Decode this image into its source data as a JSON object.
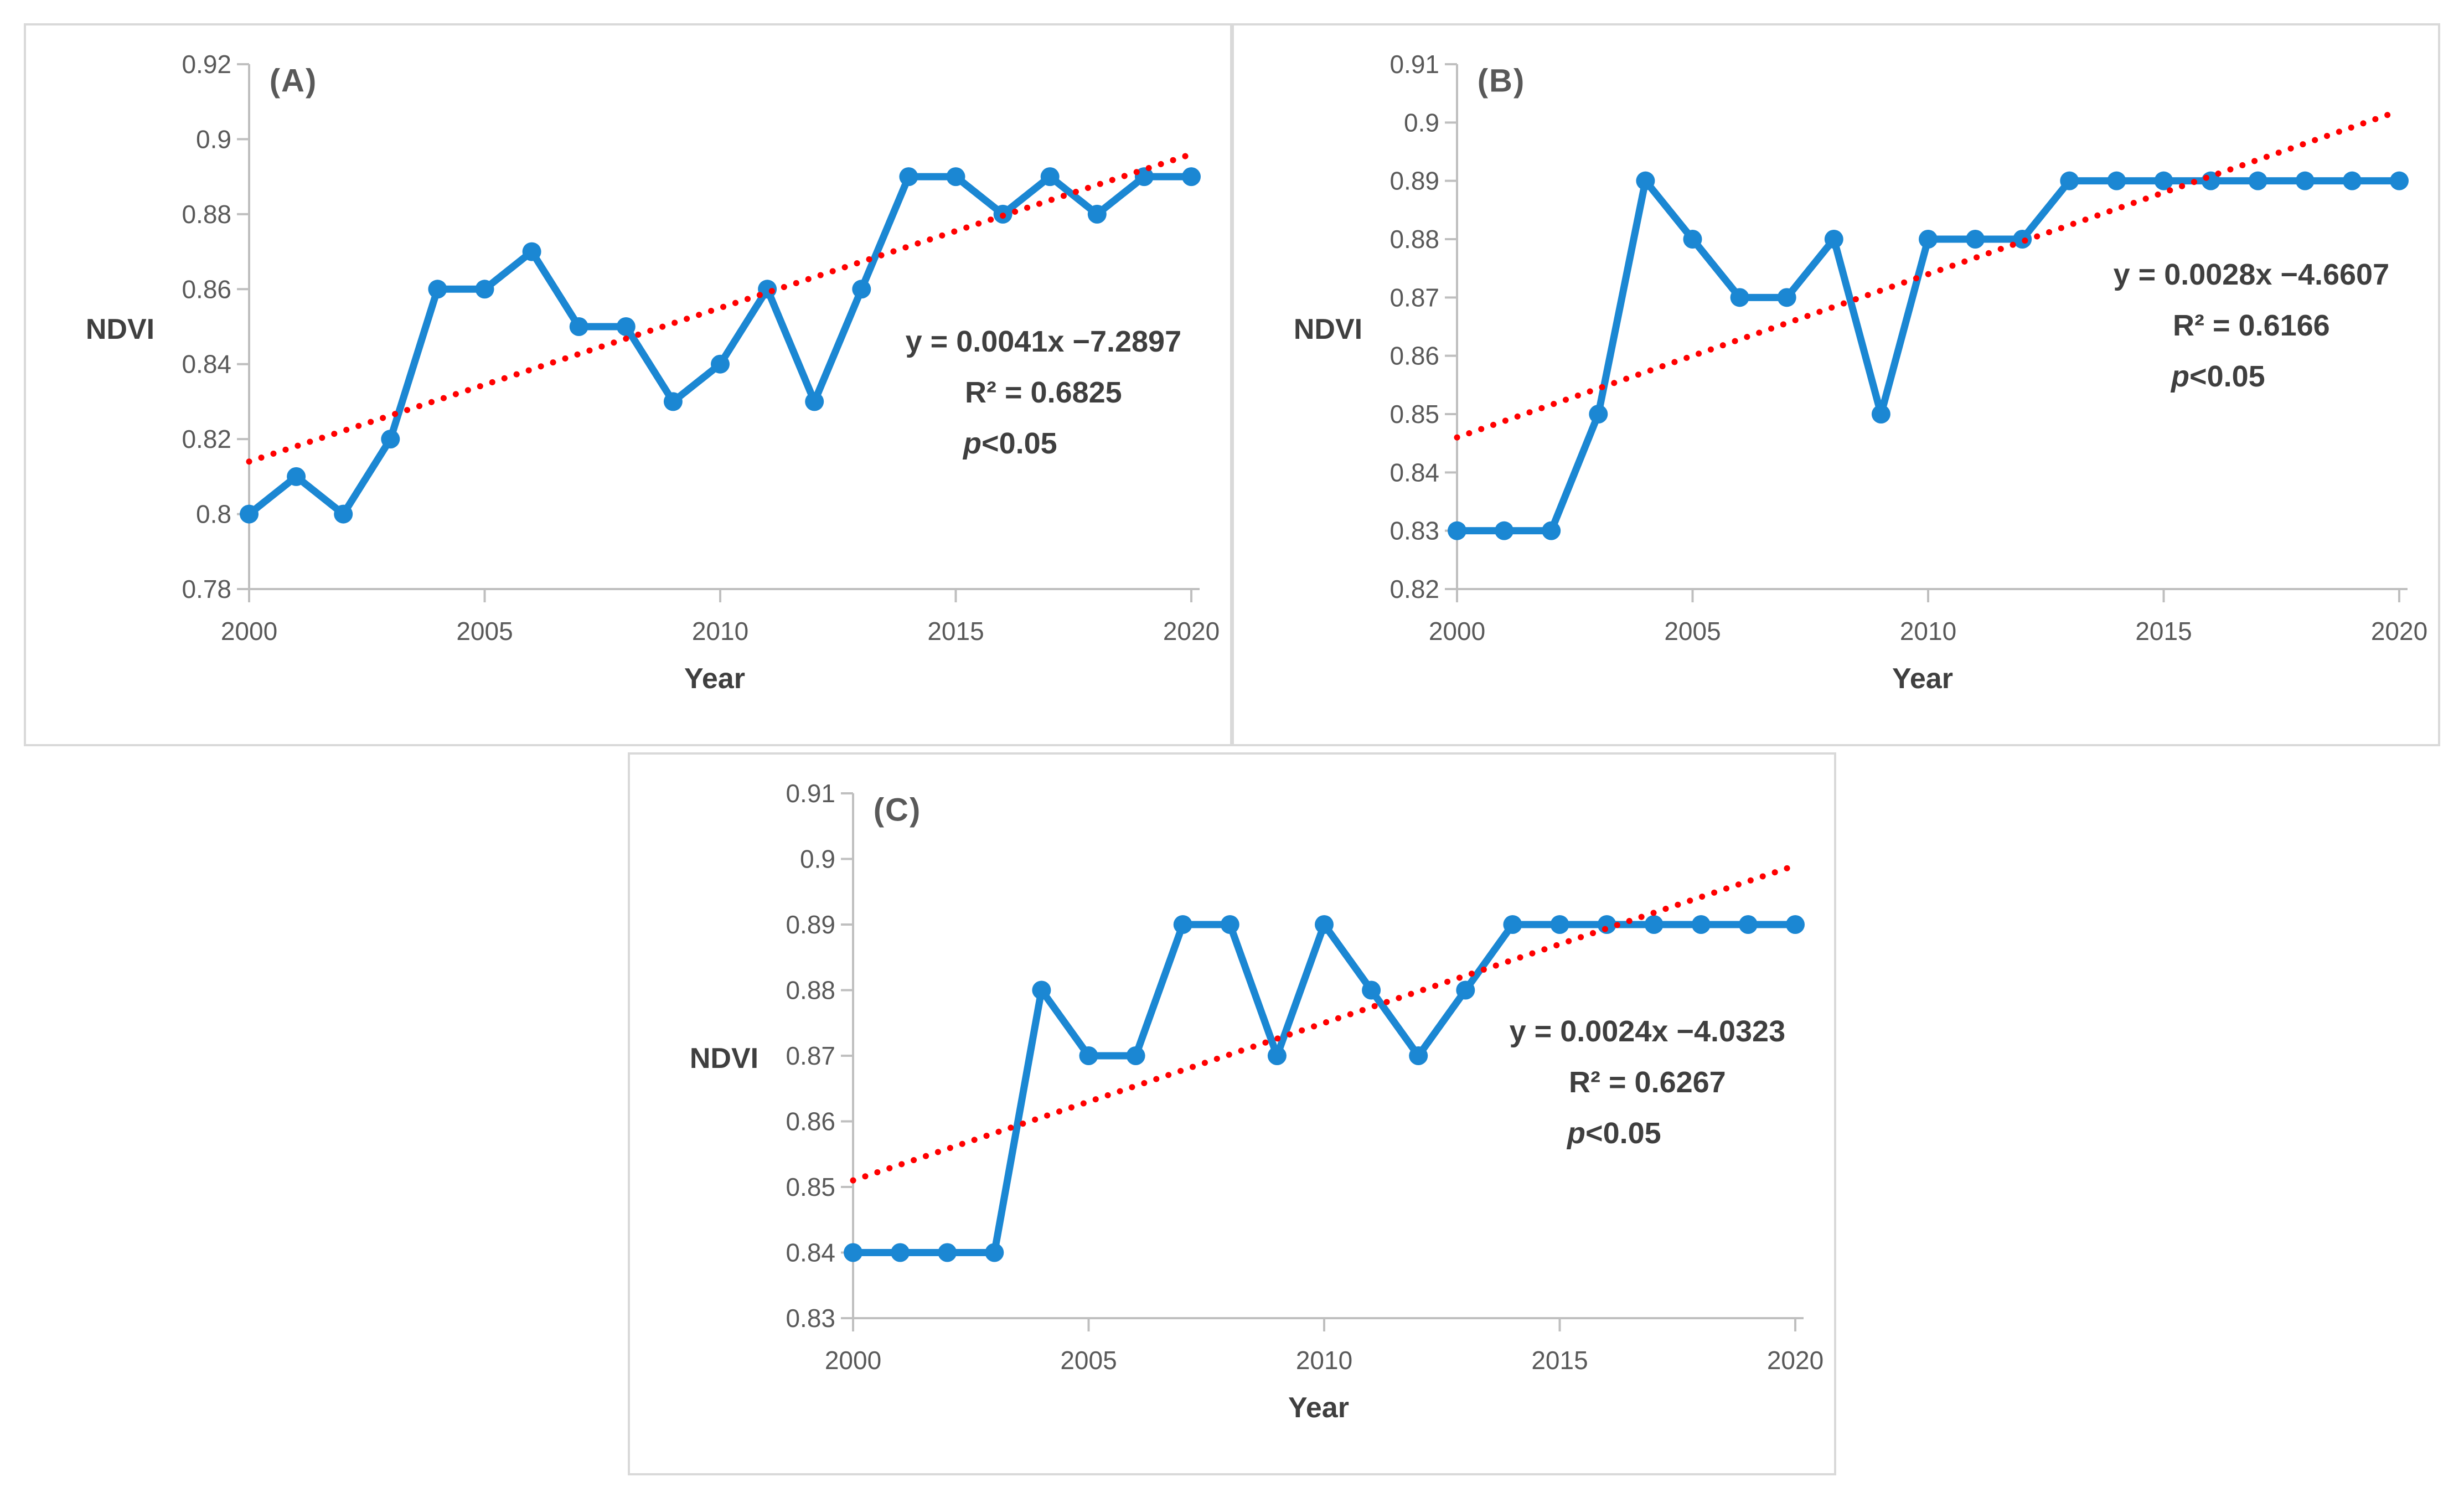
{
  "figure": {
    "background": "#FFFFFF",
    "panel_border_color": "#D9D9D9"
  },
  "colors": {
    "series_line": "#1B87D3",
    "trend_line": "#FF0000",
    "axis": "#BFBFBF",
    "tick_label": "#595959",
    "axis_title": "#3F3F3F",
    "annotation_text": "#3F3F3F",
    "panel_letter": "#595959"
  },
  "chart_data": [
    {
      "id": "A",
      "type": "line",
      "panel_label": "(A)",
      "xlabel": "Year",
      "ylabel": "NDVI",
      "x": [
        2000,
        2001,
        2002,
        2003,
        2004,
        2005,
        2006,
        2007,
        2008,
        2009,
        2010,
        2011,
        2012,
        2013,
        2014,
        2015,
        2016,
        2017,
        2018,
        2019,
        2020
      ],
      "series": [
        {
          "name": "NDVI",
          "color": "#1B87D3",
          "marker": "circle",
          "values": [
            0.8,
            0.81,
            0.8,
            0.82,
            0.86,
            0.86,
            0.87,
            0.85,
            0.85,
            0.83,
            0.84,
            0.86,
            0.83,
            0.86,
            0.89,
            0.89,
            0.88,
            0.89,
            0.88,
            0.89,
            0.89
          ]
        }
      ],
      "trendline": {
        "type": "linear",
        "style": "dotted",
        "color": "#FF0000",
        "y_start": 0.814,
        "y_end": 0.896
      },
      "annotation": {
        "equation": "y = 0.0041x −7.2897",
        "r2": "R² = 0.6825",
        "p_prefix": "p",
        "p_rest": "<0.05"
      },
      "xlim": [
        2000,
        2020
      ],
      "ylim": [
        0.78,
        0.92
      ],
      "yticks": [
        "0.78",
        "0.8",
        "0.82",
        "0.84",
        "0.86",
        "0.88",
        "0.9",
        "0.92"
      ],
      "xticks": [
        2000,
        2005,
        2010,
        2015,
        2020
      ],
      "grid": false,
      "legend": false
    },
    {
      "id": "B",
      "type": "line",
      "panel_label": "(B)",
      "xlabel": "Year",
      "ylabel": "NDVI",
      "x": [
        2000,
        2001,
        2002,
        2003,
        2004,
        2005,
        2006,
        2007,
        2008,
        2009,
        2010,
        2011,
        2012,
        2013,
        2014,
        2015,
        2016,
        2017,
        2018,
        2019,
        2020
      ],
      "series": [
        {
          "name": "NDVI",
          "color": "#1B87D3",
          "marker": "circle",
          "values": [
            0.83,
            0.83,
            0.83,
            0.85,
            0.89,
            0.88,
            0.87,
            0.87,
            0.88,
            0.85,
            0.88,
            0.88,
            0.88,
            0.89,
            0.89,
            0.89,
            0.89,
            0.89,
            0.89,
            0.89,
            0.89
          ]
        }
      ],
      "trendline": {
        "type": "linear",
        "style": "dotted",
        "color": "#FF0000",
        "y_start": 0.846,
        "y_end": 0.902
      },
      "annotation": {
        "equation": "y = 0.0028x −4.6607",
        "r2": "R² = 0.6166",
        "p_prefix": "p",
        "p_rest": "<0.05"
      },
      "xlim": [
        2000,
        2020
      ],
      "ylim": [
        0.82,
        0.91
      ],
      "yticks": [
        "0.82",
        "0.83",
        "0.84",
        "0.85",
        "0.86",
        "0.87",
        "0.88",
        "0.89",
        "0.9",
        "0.91"
      ],
      "xticks": [
        2000,
        2005,
        2010,
        2015,
        2020
      ],
      "grid": false,
      "legend": false
    },
    {
      "id": "C",
      "type": "line",
      "panel_label": "(C)",
      "xlabel": "Year",
      "ylabel": "NDVI",
      "x": [
        2000,
        2001,
        2002,
        2003,
        2004,
        2005,
        2006,
        2007,
        2008,
        2009,
        2010,
        2011,
        2012,
        2013,
        2014,
        2015,
        2016,
        2017,
        2018,
        2019,
        2020
      ],
      "series": [
        {
          "name": "NDVI",
          "color": "#1B87D3",
          "marker": "circle",
          "values": [
            0.84,
            0.84,
            0.84,
            0.84,
            0.88,
            0.87,
            0.87,
            0.89,
            0.89,
            0.87,
            0.89,
            0.88,
            0.87,
            0.88,
            0.89,
            0.89,
            0.89,
            0.89,
            0.89,
            0.89,
            0.89
          ]
        }
      ],
      "trendline": {
        "type": "linear",
        "style": "dotted",
        "color": "#FF0000",
        "y_start": 0.851,
        "y_end": 0.899
      },
      "annotation": {
        "equation": "y = 0.0024x −4.0323",
        "r2": "R² = 0.6267",
        "p_prefix": "p",
        "p_rest": "<0.05"
      },
      "xlim": [
        2000,
        2020
      ],
      "ylim": [
        0.83,
        0.91
      ],
      "yticks": [
        "0.83",
        "0.84",
        "0.85",
        "0.86",
        "0.87",
        "0.88",
        "0.89",
        "0.9",
        "0.91"
      ],
      "xticks": [
        2000,
        2005,
        2010,
        2015,
        2020
      ],
      "grid": false,
      "legend": false
    }
  ]
}
